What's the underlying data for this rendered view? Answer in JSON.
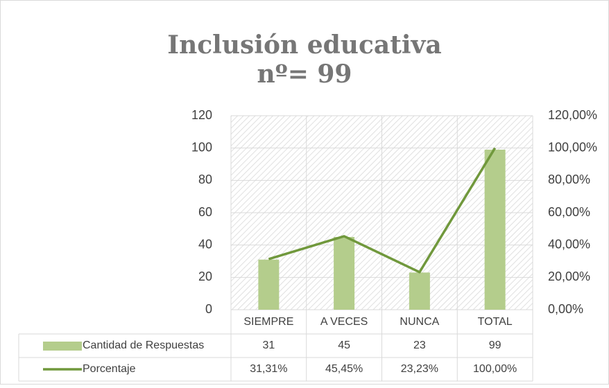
{
  "chart_data": {
    "type": "bar",
    "title": "Inclusión educativa",
    "subtitle": "nº= 99",
    "categories": [
      "SIEMPRE",
      "A VECES",
      "NUNCA",
      "TOTAL"
    ],
    "series": [
      {
        "name": "Cantidad de Respuestas",
        "type": "bar",
        "color": "#b4cd8c",
        "values": [
          31,
          45,
          23,
          99
        ]
      },
      {
        "name": "Porcentaje",
        "type": "line",
        "axis": "y2",
        "color": "#70983c",
        "values": [
          31.31,
          45.45,
          23.23,
          100
        ],
        "value_labels": [
          "31,31%",
          "45,45%",
          "23,23%",
          "100,00%"
        ]
      }
    ],
    "ylim": [
      0,
      120
    ],
    "yticks": [
      0,
      20,
      40,
      60,
      80,
      100,
      120
    ],
    "y2lim": [
      0,
      120
    ],
    "y2ticks": [
      {
        "value": 0,
        "label": "0,00%"
      },
      {
        "value": 20,
        "label": "20,00%"
      },
      {
        "value": 40,
        "label": "40,00%"
      },
      {
        "value": 60,
        "label": "60,00%"
      },
      {
        "value": 80,
        "label": "80,00%"
      },
      {
        "value": 100,
        "label": "100,00%"
      },
      {
        "value": 120,
        "label": "120,00%"
      }
    ],
    "grid": true,
    "data_table": true
  }
}
